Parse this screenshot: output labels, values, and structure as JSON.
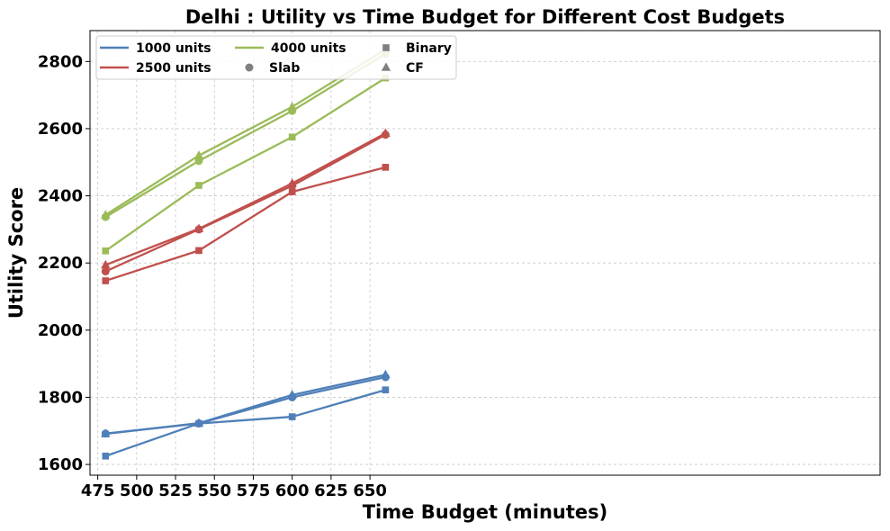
{
  "chart_data": {
    "type": "line",
    "title": "Delhi : Utility vs Time Budget for Different Cost Budgets",
    "xlabel": "Time Budget (minutes)",
    "ylabel": "Utility Score",
    "xlim": [
      470,
      978
    ],
    "ylim": [
      1568,
      2892
    ],
    "x_ticks": [
      475,
      500,
      525,
      550,
      575,
      600,
      625,
      650
    ],
    "y_ticks": [
      1600,
      1800,
      2000,
      2200,
      2400,
      2600,
      2800
    ],
    "grid": true,
    "legend_position": "top-left",
    "x": [
      480,
      540,
      600,
      660
    ],
    "colors": {
      "1000 units": "#4f7fb8",
      "2500 units": "#c0504d",
      "4000 units": "#9bbb59",
      "method": "#808080"
    },
    "legend": [
      {
        "label": "1000 units",
        "kind": "line",
        "color": "#4f7fb8"
      },
      {
        "label": "2500 units",
        "kind": "line",
        "color": "#c0504d"
      },
      {
        "label": "4000 units",
        "kind": "line",
        "color": "#9bbb59"
      },
      {
        "label": "Slab",
        "kind": "marker",
        "marker": "circle"
      },
      {
        "label": "Binary",
        "kind": "marker",
        "marker": "square"
      },
      {
        "label": "CF",
        "kind": "marker",
        "marker": "triangle"
      }
    ],
    "series": [
      {
        "cost": "1000 units",
        "method": "Binary",
        "marker": "square",
        "color": "#4f7fb8",
        "values": [
          1625,
          1722,
          1742,
          1822
        ]
      },
      {
        "cost": "1000 units",
        "method": "Slab",
        "marker": "circle",
        "color": "#4f7fb8",
        "values": [
          1692,
          1722,
          1800,
          1860
        ]
      },
      {
        "cost": "1000 units",
        "method": "CF",
        "marker": "triangle",
        "color": "#4f7fb8",
        "values": [
          1691,
          1723,
          1807,
          1867
        ]
      },
      {
        "cost": "2500 units",
        "method": "Binary",
        "marker": "square",
        "color": "#c0504d",
        "values": [
          2147,
          2237,
          2412,
          2485
        ]
      },
      {
        "cost": "2500 units",
        "method": "Slab",
        "marker": "circle",
        "color": "#c0504d",
        "values": [
          2175,
          2300,
          2430,
          2582
        ]
      },
      {
        "cost": "2500 units",
        "method": "CF",
        "marker": "triangle",
        "color": "#c0504d",
        "values": [
          2194,
          2302,
          2437,
          2586
        ]
      },
      {
        "cost": "4000 units",
        "method": "Binary",
        "marker": "square",
        "color": "#9bbb59",
        "values": [
          2236,
          2431,
          2575,
          2751
        ]
      },
      {
        "cost": "4000 units",
        "method": "Slab",
        "marker": "circle",
        "color": "#9bbb59",
        "values": [
          2337,
          2504,
          2653,
          2823
        ]
      },
      {
        "cost": "4000 units",
        "method": "CF",
        "marker": "triangle",
        "color": "#9bbb59",
        "values": [
          2343,
          2520,
          2665,
          2836
        ]
      }
    ]
  }
}
